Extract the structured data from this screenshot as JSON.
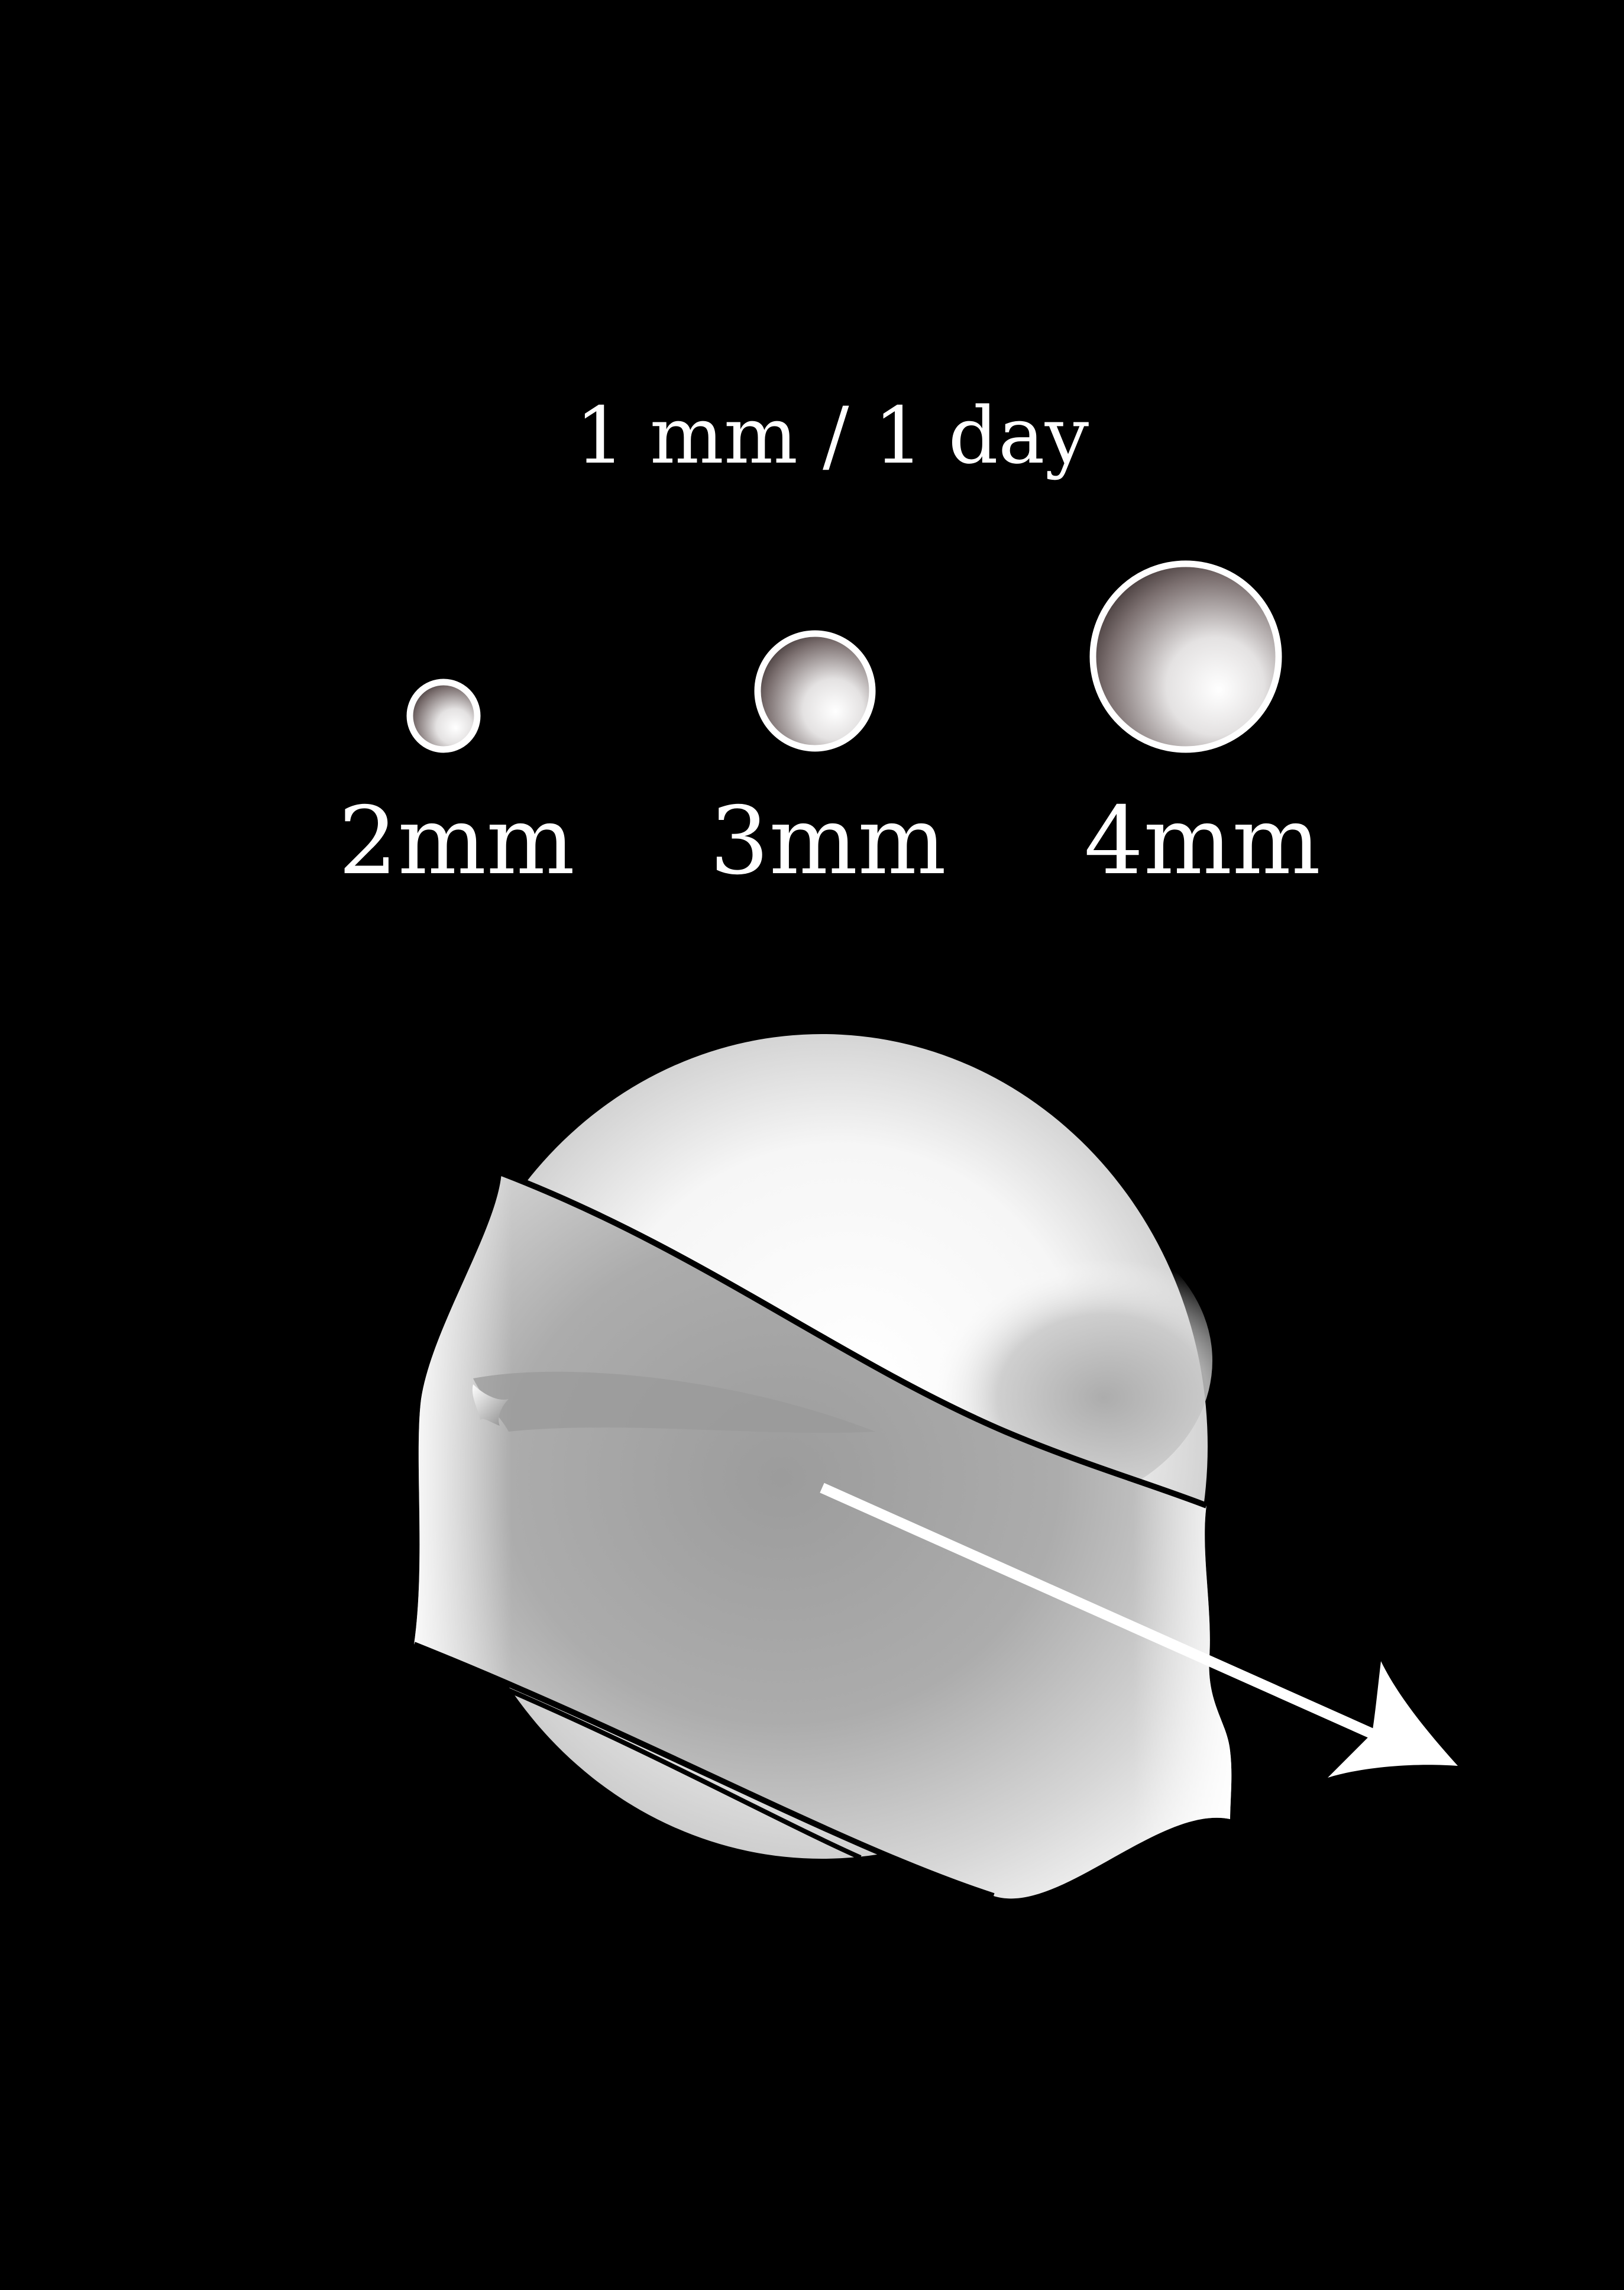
{
  "title": "1 mm / 1 day",
  "colors": {
    "background": "#000000",
    "foreground": "#ffffff",
    "shade_dark": "#3a3030",
    "shade_mid": "#a8a8a8"
  },
  "sizes": [
    {
      "label": "2mm",
      "diameter_mm": 2
    },
    {
      "label": "3mm",
      "diameter_mm": 3
    },
    {
      "label": "4mm",
      "diameter_mm": 4
    }
  ],
  "illustration": {
    "subject": "sphere",
    "arrow": "right-down"
  }
}
